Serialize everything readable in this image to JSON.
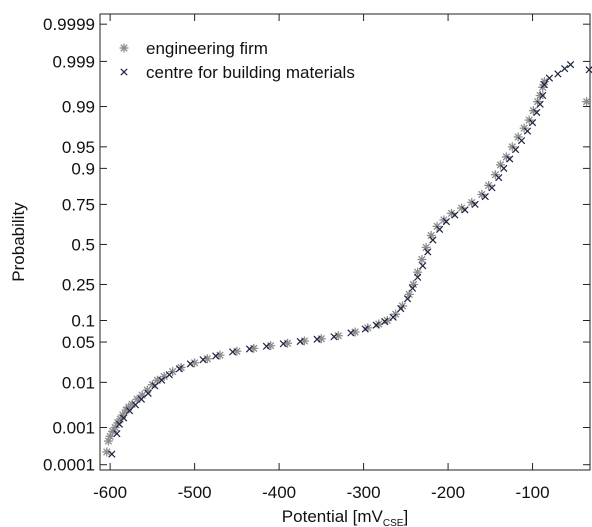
{
  "chart_data": {
    "type": "scatter",
    "xlabel": "Potential [mV",
    "xlabel_sub": "CSE",
    "xlabel_close": "]",
    "ylabel": "Probability",
    "xlim": [
      -612,
      -32
    ],
    "y_scale": "normal-probability",
    "ylim": [
      7e-05,
      0.99995
    ],
    "x_ticks": [
      -600,
      -500,
      -400,
      -300,
      -200,
      -100
    ],
    "x_tick_labels": [
      "-600",
      "-500",
      "-400",
      "-300",
      "-200",
      "-100"
    ],
    "y_ticks": [
      0.0001,
      0.001,
      0.01,
      0.05,
      0.1,
      0.25,
      0.5,
      0.75,
      0.9,
      0.95,
      0.99,
      0.999,
      0.9999
    ],
    "y_tick_labels": [
      "0.0001",
      "0.001",
      "0.01",
      "0.05",
      "0.1",
      "0.25",
      "0.5",
      "0.75",
      "0.9",
      "0.95",
      "0.99",
      "0.999",
      "0.9999"
    ],
    "grid": false,
    "legend_position": "top-left",
    "series": [
      {
        "name": "engineering firm",
        "marker": "asterisk",
        "color": "#8c8c8c",
        "points": [
          [
            -604,
            0.00023
          ],
          [
            -602,
            0.00045
          ],
          [
            -600,
            0.0006
          ],
          [
            -597,
            0.0008
          ],
          [
            -594,
            0.001
          ],
          [
            -591,
            0.0013
          ],
          [
            -588,
            0.0016
          ],
          [
            -585,
            0.002
          ],
          [
            -581,
            0.0026
          ],
          [
            -578,
            0.003
          ],
          [
            -574,
            0.0035
          ],
          [
            -568,
            0.0045
          ],
          [
            -562,
            0.0055
          ],
          [
            -556,
            0.007
          ],
          [
            -550,
            0.009
          ],
          [
            -544,
            0.011
          ],
          [
            -536,
            0.013
          ],
          [
            -526,
            0.016
          ],
          [
            -516,
            0.019
          ],
          [
            -500,
            0.023
          ],
          [
            -485,
            0.027
          ],
          [
            -470,
            0.031
          ],
          [
            -450,
            0.036
          ],
          [
            -430,
            0.04
          ],
          [
            -410,
            0.044
          ],
          [
            -390,
            0.048
          ],
          [
            -370,
            0.052
          ],
          [
            -350,
            0.056
          ],
          [
            -330,
            0.062
          ],
          [
            -310,
            0.07
          ],
          [
            -295,
            0.08
          ],
          [
            -282,
            0.09
          ],
          [
            -272,
            0.1
          ],
          [
            -262,
            0.12
          ],
          [
            -254,
            0.15
          ],
          [
            -246,
            0.2
          ],
          [
            -241,
            0.25
          ],
          [
            -236,
            0.32
          ],
          [
            -231,
            0.4
          ],
          [
            -226,
            0.48
          ],
          [
            -220,
            0.56
          ],
          [
            -213,
            0.62
          ],
          [
            -205,
            0.66
          ],
          [
            -196,
            0.7
          ],
          [
            -184,
            0.73
          ],
          [
            -172,
            0.76
          ],
          [
            -160,
            0.8
          ],
          [
            -152,
            0.84
          ],
          [
            -144,
            0.88
          ],
          [
            -138,
            0.91
          ],
          [
            -131,
            0.93
          ],
          [
            -124,
            0.95
          ],
          [
            -117,
            0.965
          ],
          [
            -110,
            0.975
          ],
          [
            -104,
            0.982
          ],
          [
            -99,
            0.988
          ],
          [
            -94,
            0.992
          ],
          [
            -91,
            0.994
          ],
          [
            -88,
            0.996
          ],
          [
            -86,
            0.997
          ],
          [
            -36,
            0.992
          ]
        ]
      },
      {
        "name": "centre for building materials",
        "marker": "x",
        "color": "#1c2340",
        "points": [
          [
            -598,
            0.0002
          ],
          [
            -592,
            0.0007
          ],
          [
            -589,
            0.0012
          ],
          [
            -584,
            0.0017
          ],
          [
            -577,
            0.0025
          ],
          [
            -570,
            0.0034
          ],
          [
            -563,
            0.0045
          ],
          [
            -555,
            0.006
          ],
          [
            -547,
            0.0085
          ],
          [
            -539,
            0.011
          ],
          [
            -530,
            0.014
          ],
          [
            -518,
            0.018
          ],
          [
            -505,
            0.022
          ],
          [
            -490,
            0.026
          ],
          [
            -475,
            0.03
          ],
          [
            -455,
            0.035
          ],
          [
            -435,
            0.039
          ],
          [
            -415,
            0.043
          ],
          [
            -395,
            0.047
          ],
          [
            -375,
            0.051
          ],
          [
            -355,
            0.055
          ],
          [
            -335,
            0.06
          ],
          [
            -315,
            0.068
          ],
          [
            -298,
            0.077
          ],
          [
            -285,
            0.087
          ],
          [
            -275,
            0.097
          ],
          [
            -265,
            0.11
          ],
          [
            -256,
            0.14
          ],
          [
            -248,
            0.18
          ],
          [
            -242,
            0.23
          ],
          [
            -236,
            0.29
          ],
          [
            -230,
            0.36
          ],
          [
            -224,
            0.45
          ],
          [
            -218,
            0.53
          ],
          [
            -210,
            0.6
          ],
          [
            -202,
            0.65
          ],
          [
            -192,
            0.69
          ],
          [
            -180,
            0.72
          ],
          [
            -168,
            0.75
          ],
          [
            -156,
            0.79
          ],
          [
            -148,
            0.83
          ],
          [
            -140,
            0.87
          ],
          [
            -134,
            0.9
          ],
          [
            -127,
            0.925
          ],
          [
            -120,
            0.945
          ],
          [
            -113,
            0.96
          ],
          [
            -106,
            0.972
          ],
          [
            -100,
            0.98
          ],
          [
            -95,
            0.987
          ],
          [
            -91,
            0.991
          ],
          [
            -88,
            0.994
          ],
          [
            -86,
            0.9965
          ],
          [
            -80,
            0.9975
          ],
          [
            -70,
            0.998
          ],
          [
            -62,
            0.9985
          ],
          [
            -55,
            0.9988
          ],
          [
            -33,
            0.9984
          ]
        ]
      }
    ]
  }
}
